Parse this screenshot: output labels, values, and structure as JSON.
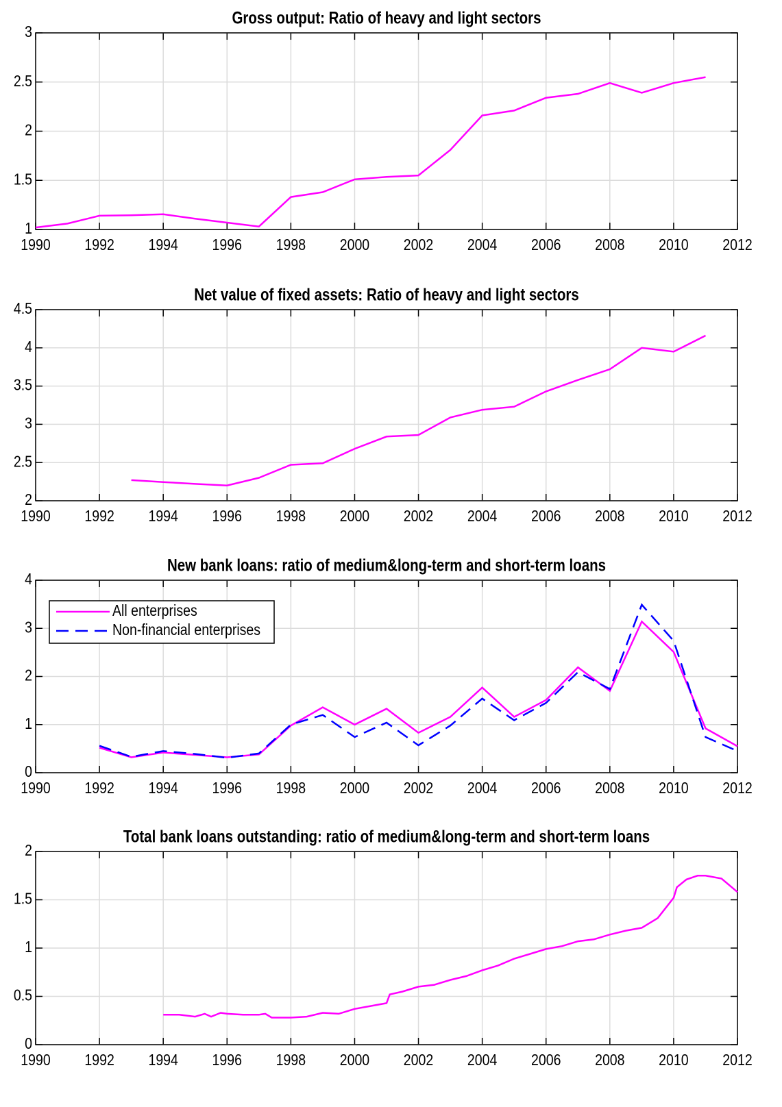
{
  "chart_data": [
    {
      "type": "line",
      "title": "Gross output: Ratio of heavy and light sectors",
      "x": [
        1990,
        1991,
        1992,
        1993,
        1994,
        1995,
        1996,
        1997,
        1998,
        1999,
        2000,
        2001,
        2002,
        2003,
        2004,
        2005,
        2006,
        2007,
        2008,
        2009,
        2010,
        2011
      ],
      "series": [
        {
          "color": "#ff00ff",
          "dash": "solid",
          "values": [
            1.02,
            1.06,
            1.14,
            1.145,
            1.155,
            1.11,
            1.07,
            1.03,
            1.33,
            1.38,
            1.51,
            1.535,
            1.55,
            1.81,
            2.16,
            2.21,
            2.34,
            2.38,
            2.49,
            2.39,
            2.49,
            2.55
          ]
        }
      ],
      "xlim": [
        1990,
        2012
      ],
      "ylim": [
        1,
        3
      ],
      "xticks": [
        1990,
        1992,
        1994,
        1996,
        1998,
        2000,
        2002,
        2004,
        2006,
        2008,
        2010,
        2012
      ],
      "yticks": [
        1,
        1.5,
        2,
        2.5,
        3
      ],
      "grid": true
    },
    {
      "type": "line",
      "title": "Net value of fixed assets: Ratio of heavy and light sectors",
      "x": [
        1993,
        1994,
        1995,
        1996,
        1997,
        1998,
        1999,
        2000,
        2001,
        2002,
        2003,
        2004,
        2005,
        2006,
        2007,
        2008,
        2009,
        2010,
        2011
      ],
      "series": [
        {
          "color": "#ff00ff",
          "dash": "solid",
          "values": [
            2.27,
            2.245,
            2.22,
            2.2,
            2.3,
            2.47,
            2.49,
            2.68,
            2.84,
            2.86,
            3.09,
            3.19,
            3.23,
            3.43,
            3.58,
            3.72,
            4.0,
            3.95,
            4.16
          ]
        }
      ],
      "xlim": [
        1990,
        2012
      ],
      "ylim": [
        2,
        4.5
      ],
      "xticks": [
        1990,
        1992,
        1994,
        1996,
        1998,
        2000,
        2002,
        2004,
        2006,
        2008,
        2010,
        2012
      ],
      "yticks": [
        2,
        2.5,
        3,
        3.5,
        4,
        4.5
      ],
      "grid": true
    },
    {
      "type": "line",
      "title": "New bank loans: ratio of medium&long-term and short-term loans",
      "x": [
        1992,
        1993,
        1994,
        1995,
        1996,
        1997,
        1998,
        1999,
        2000,
        2001,
        2002,
        2003,
        2004,
        2005,
        2006,
        2007,
        2008,
        2009,
        2010,
        2011,
        2012
      ],
      "series": [
        {
          "name": "All enterprises",
          "color": "#ff00ff",
          "dash": "solid",
          "values": [
            0.52,
            0.32,
            0.42,
            0.37,
            0.32,
            0.38,
            0.98,
            1.36,
            1.0,
            1.33,
            0.83,
            1.16,
            1.77,
            1.16,
            1.51,
            2.19,
            1.7,
            3.14,
            2.51,
            0.92,
            0.55
          ]
        },
        {
          "name": "Non-financial enterprises",
          "color": "#0000ff",
          "dash": "dashed",
          "values": [
            0.56,
            0.33,
            0.45,
            0.39,
            0.31,
            0.4,
            1.0,
            1.2,
            0.74,
            1.04,
            0.57,
            0.98,
            1.54,
            1.09,
            1.45,
            2.09,
            1.74,
            3.49,
            2.74,
            0.74,
            0.45
          ]
        }
      ],
      "xlim": [
        1990,
        2012
      ],
      "ylim": [
        0,
        4
      ],
      "xticks": [
        1990,
        1992,
        1994,
        1996,
        1998,
        2000,
        2002,
        2004,
        2006,
        2008,
        2010,
        2012
      ],
      "yticks": [
        0,
        1,
        2,
        3,
        4
      ],
      "grid": true,
      "legend": "upper left"
    },
    {
      "type": "line",
      "title": "Total bank loans outstanding: ratio of medium&long-term and short-term loans",
      "x": [
        1994,
        1994.5,
        1995,
        1995.3,
        1995.5,
        1995.8,
        1996,
        1996.5,
        1997,
        1997.2,
        1997.4,
        1998,
        1998.5,
        1999,
        1999.5,
        2000,
        2000.5,
        2001,
        2001.1,
        2001.5,
        2002,
        2002.5,
        2003,
        2003.5,
        2004,
        2004.5,
        2005,
        2005.5,
        2006,
        2006.5,
        2007,
        2007.5,
        2008,
        2008.5,
        2009,
        2009.5,
        2010,
        2010.1,
        2010.4,
        2010.75,
        2011,
        2011.5,
        2012
      ],
      "series": [
        {
          "color": "#ff00ff",
          "dash": "solid",
          "values": [
            0.31,
            0.31,
            0.29,
            0.32,
            0.29,
            0.33,
            0.32,
            0.31,
            0.31,
            0.32,
            0.28,
            0.28,
            0.29,
            0.33,
            0.32,
            0.37,
            0.4,
            0.43,
            0.52,
            0.55,
            0.6,
            0.62,
            0.67,
            0.71,
            0.77,
            0.82,
            0.89,
            0.94,
            0.99,
            1.02,
            1.07,
            1.09,
            1.14,
            1.18,
            1.21,
            1.31,
            1.52,
            1.63,
            1.71,
            1.75,
            1.75,
            1.72,
            1.58
          ]
        }
      ],
      "xlim": [
        1990,
        2012
      ],
      "ylim": [
        0,
        2
      ],
      "xticks": [
        1990,
        1992,
        1994,
        1996,
        1998,
        2000,
        2002,
        2004,
        2006,
        2008,
        2010,
        2012
      ],
      "yticks": [
        0,
        0.5,
        1,
        1.5,
        2
      ],
      "grid": true
    }
  ]
}
